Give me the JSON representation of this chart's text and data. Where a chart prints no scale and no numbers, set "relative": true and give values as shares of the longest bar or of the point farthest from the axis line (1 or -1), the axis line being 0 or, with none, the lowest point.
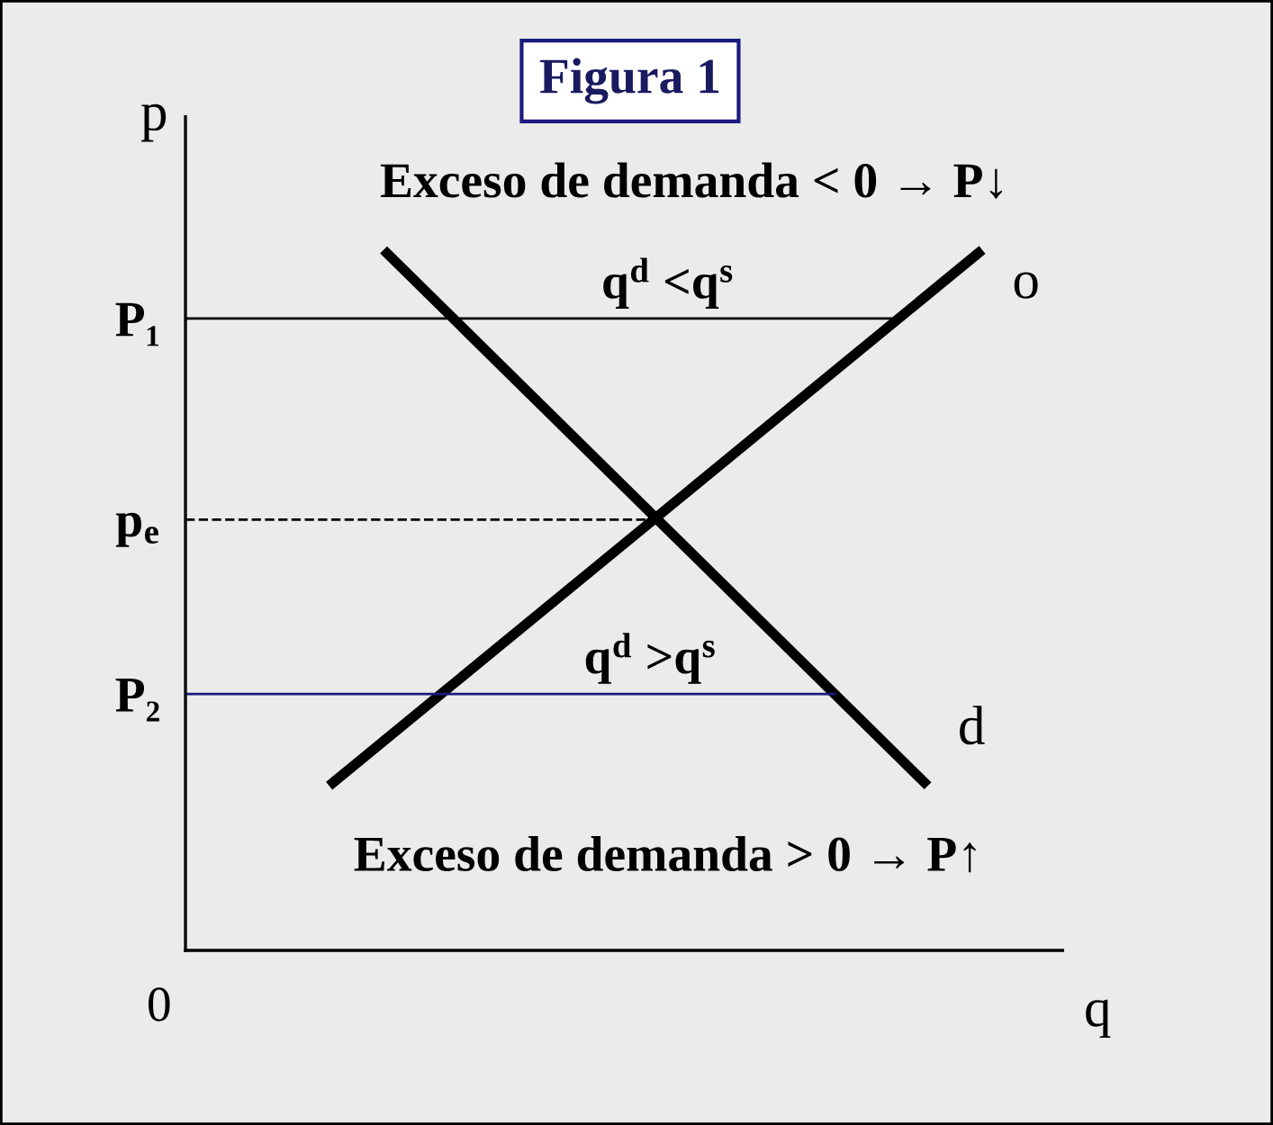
{
  "chart_data": {
    "type": "line",
    "relative": true,
    "categories": [
      null,
      null,
      null,
      null,
      null,
      null,
      null,
      null,
      null,
      null,
      null,
      null,
      null
    ],
    "title": "Figura 1",
    "xlabel": "q",
    "ylabel": "p",
    "series": [
      {
        "name": "o",
        "color": "#000000",
        "values": [
          0.235,
          null,
          null,
          null,
          null,
          null,
          null,
          null,
          null,
          null,
          null,
          null,
          1
        ]
      },
      {
        "name": "d",
        "color": "#000000",
        "values": [
          null,
          1,
          null,
          null,
          null,
          null,
          null,
          null,
          null,
          null,
          null,
          0.235,
          null
        ]
      }
    ],
    "ref_lines": [
      {
        "axis": "y",
        "value": 0.902,
        "label": "P₁",
        "color": "#000000",
        "line_style": "solid"
      },
      {
        "axis": "y",
        "value": 0.615,
        "label": "p$_{e}$",
        "color": "#000000",
        "line_style": "dashed"
      },
      {
        "axis": "y",
        "value": 0.366,
        "label": "P₂",
        "color": "#1a1a80",
        "line_style": "solid"
      }
    ],
    "annotations": [
      "Exceso de demanda < 0 → P↓",
      "q$^{d}$ <q$^{s}$",
      "q$^{d}$ >q$^{s}$",
      "Exceso de demanda > 0 → P↑",
      "0"
    ],
    "legend": false,
    "grid": false,
    "marker": "none",
    "line_style": "solid"
  }
}
